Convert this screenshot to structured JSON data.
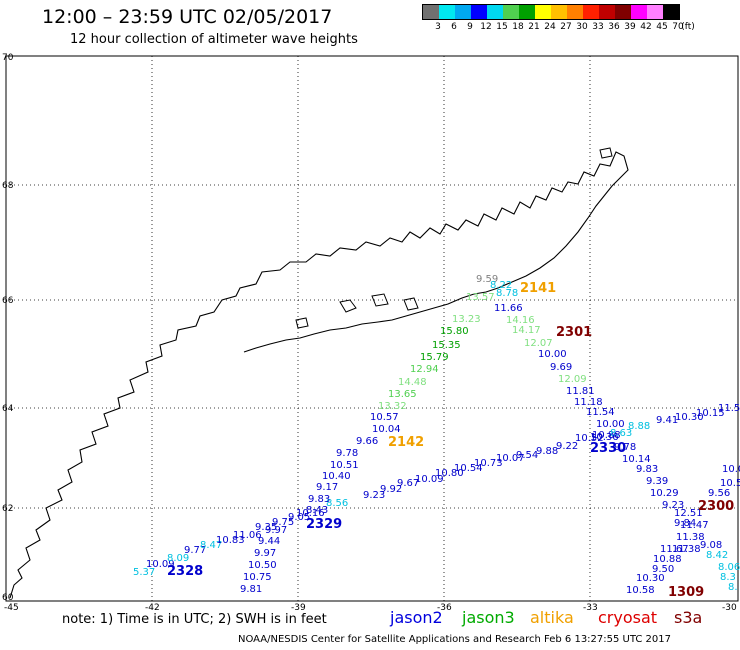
{
  "title": "12:00 – 23:59 UTC 02/05/2017",
  "subtitle": "12 hour collection of altimeter wave heights",
  "scale": {
    "colors": [
      "#808080",
      "#00ffff",
      "#00b0ff",
      "#0000ff",
      "#00ffff",
      "#00d000",
      "#00a000",
      "#ffff00",
      "#ffb000",
      "#ff8000",
      "#ff0000",
      "#c00000",
      "#800000",
      "#ff00ff",
      "#ff40ff",
      "#000000"
    ],
    "colors_ordered": [
      "#707070",
      "#00e8f0",
      "#00a8f0",
      "#0000ff",
      "#00d8f0",
      "#50d050",
      "#00a000",
      "#ffff00",
      "#ffc000",
      "#ff8000",
      "#ff2000",
      "#c00000",
      "#800000",
      "#ff00ff",
      "#ff80ff",
      "#000000"
    ],
    "labels": [
      "3",
      "6",
      "9",
      "12",
      "15",
      "18",
      "21",
      "24",
      "27",
      "30",
      "33",
      "36",
      "39",
      "42",
      "45",
      "70",
      "(ft)"
    ]
  },
  "axes": {
    "lat_labels": [
      "70",
      "68",
      "66",
      "64",
      "62",
      "60"
    ],
    "lon_labels": [
      "-45",
      "-42",
      "-39",
      "-36",
      "-33",
      "-30"
    ]
  },
  "tracks": [
    {
      "id": "2328",
      "color": "#0000cc",
      "label_color": "#0000cc"
    },
    {
      "id": "2329",
      "color": "#0000cc"
    },
    {
      "id": "2330",
      "color": "#0000cc"
    },
    {
      "id": "2141",
      "color": "#f0a000"
    },
    {
      "id": "2142",
      "color": "#f0a000"
    },
    {
      "id": "2301",
      "color": "#800000"
    },
    {
      "id": "1309",
      "color": "#800000"
    },
    {
      "id": "2300",
      "color": "#800000"
    }
  ],
  "note": "note: 1) Time is in UTC; 2) SWH is in feet",
  "satellites": [
    {
      "name": "jason2",
      "color": "#0000dd"
    },
    {
      "name": "jason3",
      "color": "#00aa00"
    },
    {
      "name": "altika",
      "color": "#f0a000"
    },
    {
      "name": "cryosat",
      "color": "#dd0000"
    },
    {
      "name": "s3a",
      "color": "#800000"
    }
  ],
  "credit": "NOAA/NESDIS Center for Satellite Applications and Research    Feb  6 13:27:55 UTC 2017",
  "obs": [
    {
      "t": "5.37",
      "c": "#00c0e0"
    },
    {
      "t": "10.09",
      "c": "#0000cc"
    },
    {
      "t": "8.09",
      "c": "#00c0e0"
    },
    {
      "t": "9.77",
      "c": "#0000cc"
    },
    {
      "t": "8.47",
      "c": "#00c0e0"
    },
    {
      "t": "10.83",
      "c": "#0000cc"
    },
    {
      "t": "11.06",
      "c": "#0000cc"
    },
    {
      "t": "9.35",
      "c": "#0000cc"
    },
    {
      "t": "9.75",
      "c": "#0000cc"
    },
    {
      "t": "9.05",
      "c": "#0000cc"
    },
    {
      "t": "8.43",
      "c": "#0000cc"
    },
    {
      "t": "8.56",
      "c": "#00c0e0"
    },
    {
      "t": "9.23",
      "c": "#0000cc"
    },
    {
      "t": "9.92",
      "c": "#0000cc"
    },
    {
      "t": "9.67",
      "c": "#0000cc"
    },
    {
      "t": "10.09",
      "c": "#0000cc"
    },
    {
      "t": "10.80",
      "c": "#0000cc"
    },
    {
      "t": "10.54",
      "c": "#0000cc"
    },
    {
      "t": "10.73",
      "c": "#0000cc"
    },
    {
      "t": "10.07",
      "c": "#0000cc"
    },
    {
      "t": "9.54",
      "c": "#0000cc"
    },
    {
      "t": "9.88",
      "c": "#0000cc"
    },
    {
      "t": "9.22",
      "c": "#0000cc"
    },
    {
      "t": "10.52",
      "c": "#0000cc"
    },
    {
      "t": "10.88",
      "c": "#0000cc"
    },
    {
      "t": "8.63",
      "c": "#00c0e0"
    },
    {
      "t": "8.88",
      "c": "#00c0e0"
    },
    {
      "t": "9.41",
      "c": "#0000cc"
    },
    {
      "t": "10.30",
      "c": "#0000cc"
    },
    {
      "t": "10.15",
      "c": "#0000cc"
    },
    {
      "t": "11.51",
      "c": "#0000cc"
    },
    {
      "t": "9.81",
      "c": "#0000cc"
    },
    {
      "t": "10.75",
      "c": "#0000cc"
    },
    {
      "t": "10.50",
      "c": "#0000cc"
    },
    {
      "t": "9.97",
      "c": "#0000cc"
    },
    {
      "t": "9.44",
      "c": "#0000cc"
    },
    {
      "t": "9.97",
      "c": "#0000cc"
    },
    {
      "t": "10.16",
      "c": "#0000cc"
    },
    {
      "t": "9.83",
      "c": "#0000cc"
    },
    {
      "t": "9.17",
      "c": "#0000cc"
    },
    {
      "t": "10.40",
      "c": "#0000cc"
    },
    {
      "t": "10.51",
      "c": "#0000cc"
    },
    {
      "t": "9.78",
      "c": "#0000cc"
    },
    {
      "t": "9.66",
      "c": "#0000cc"
    },
    {
      "t": "10.04",
      "c": "#0000cc"
    },
    {
      "t": "10.57",
      "c": "#0000cc"
    },
    {
      "t": "13.32",
      "c": "#80e080"
    },
    {
      "t": "13.65",
      "c": "#50d050"
    },
    {
      "t": "14.48",
      "c": "#80e080"
    },
    {
      "t": "12.94",
      "c": "#50d050"
    },
    {
      "t": "15.79",
      "c": "#00a000"
    },
    {
      "t": "15.35",
      "c": "#00a000"
    },
    {
      "t": "15.80",
      "c": "#00a000"
    },
    {
      "t": "13.23",
      "c": "#80e080"
    },
    {
      "t": "13.57",
      "c": "#80e080"
    },
    {
      "t": "9.59",
      "c": "#808080"
    },
    {
      "t": "8.22",
      "c": "#00c0e0"
    },
    {
      "t": "8.78",
      "c": "#00c0e0"
    },
    {
      "t": "11.66",
      "c": "#0000cc"
    },
    {
      "t": "14.16",
      "c": "#80e080"
    },
    {
      "t": "14.17",
      "c": "#80e080"
    },
    {
      "t": "12.07",
      "c": "#80e080"
    },
    {
      "t": "10.00",
      "c": "#0000cc"
    },
    {
      "t": "9.69",
      "c": "#0000cc"
    },
    {
      "t": "12.09",
      "c": "#80e080"
    },
    {
      "t": "11.81",
      "c": "#0000cc"
    },
    {
      "t": "11.18",
      "c": "#0000cc"
    },
    {
      "t": "11.54",
      "c": "#0000cc"
    },
    {
      "t": "10.00",
      "c": "#0000cc"
    },
    {
      "t": "10.36",
      "c": "#0000cc"
    },
    {
      "t": "9.78",
      "c": "#0000cc"
    },
    {
      "t": "10.14",
      "c": "#0000cc"
    },
    {
      "t": "9.83",
      "c": "#0000cc"
    },
    {
      "t": "9.39",
      "c": "#0000cc"
    },
    {
      "t": "10.29",
      "c": "#0000cc"
    },
    {
      "t": "9.23",
      "c": "#0000cc"
    },
    {
      "t": "12.51",
      "c": "#0000cc"
    },
    {
      "t": "9.84",
      "c": "#0000cc"
    },
    {
      "t": "11.38",
      "c": "#0000cc"
    },
    {
      "t": "11.47",
      "c": "#0000cc"
    },
    {
      "t": "11.38",
      "c": "#0000cc"
    },
    {
      "t": "11.67",
      "c": "#0000cc"
    },
    {
      "t": "10.88",
      "c": "#0000cc"
    },
    {
      "t": "9.50",
      "c": "#0000cc"
    },
    {
      "t": "10.30",
      "c": "#0000cc"
    },
    {
      "t": "10.58",
      "c": "#0000cc"
    },
    {
      "t": "9.08",
      "c": "#0000cc"
    },
    {
      "t": "8.42",
      "c": "#00c0e0"
    },
    {
      "t": "8.06",
      "c": "#00c0e0"
    },
    {
      "t": "8.3",
      "c": "#00c0e0"
    },
    {
      "t": "8.",
      "c": "#00c0e0"
    },
    {
      "t": "10.0",
      "c": "#0000cc"
    },
    {
      "t": "9.56",
      "c": "#0000cc"
    },
    {
      "t": "10.5",
      "c": "#0000cc"
    }
  ]
}
